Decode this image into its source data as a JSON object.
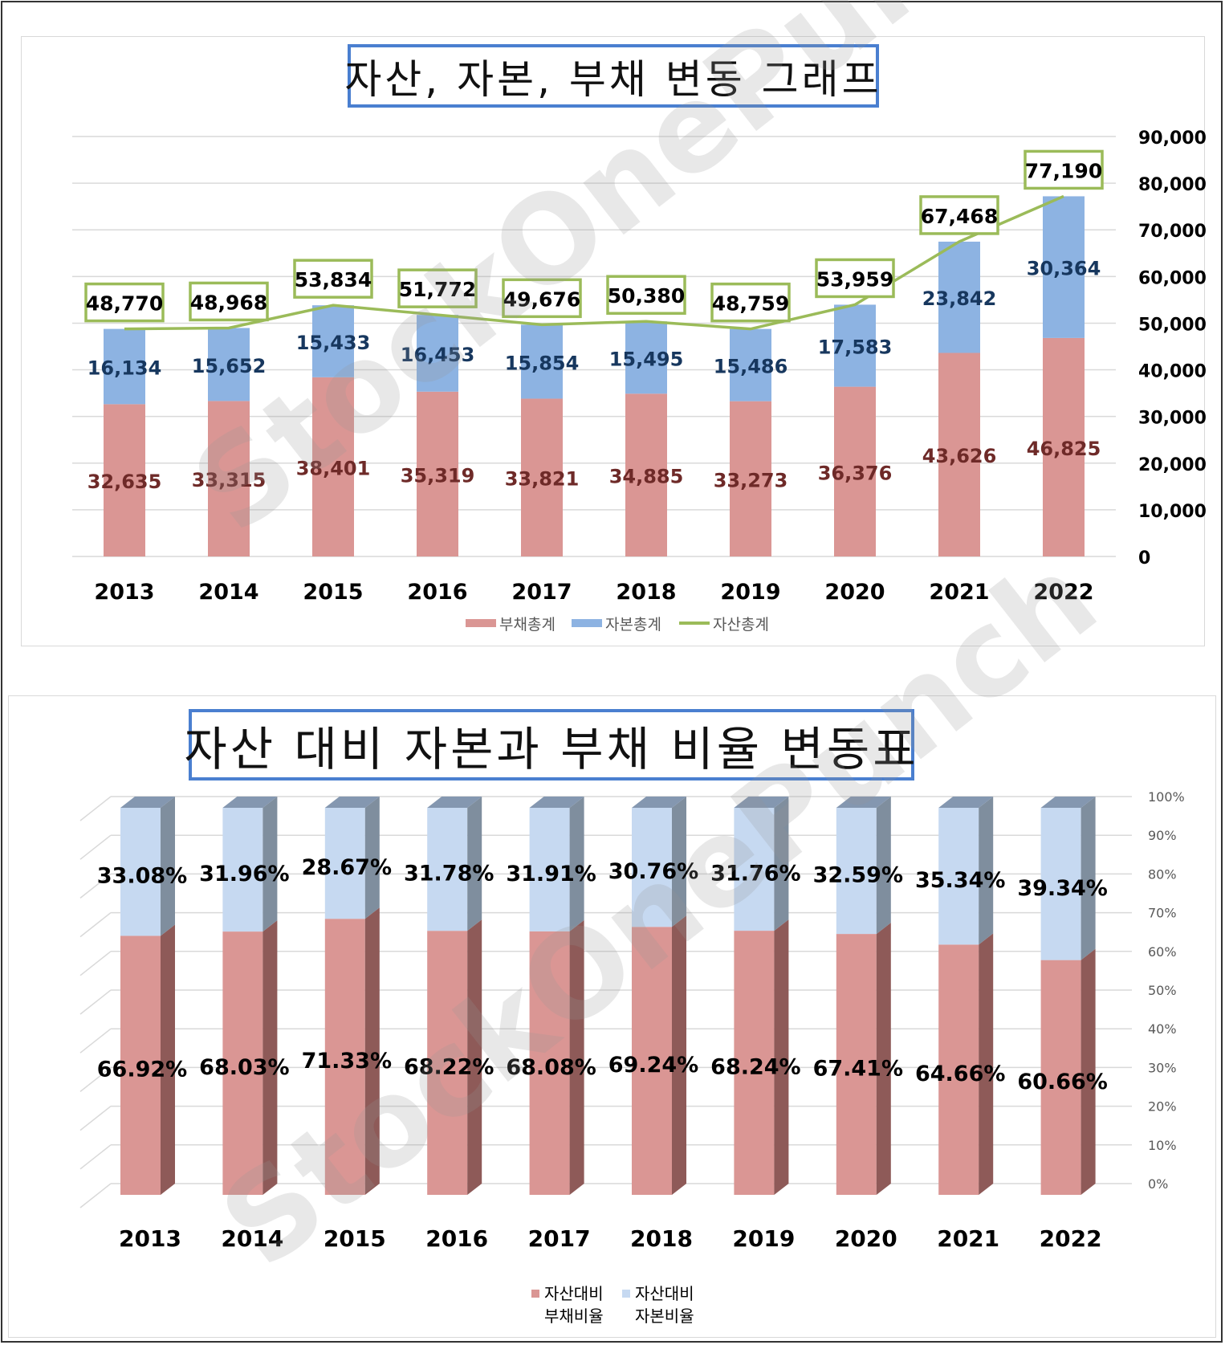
{
  "chart_data": [
    {
      "type": "bar",
      "stacked": true,
      "title": "자산, 자본, 부채 변동 그래프",
      "categories": [
        "2013",
        "2014",
        "2015",
        "2016",
        "2017",
        "2018",
        "2019",
        "2020",
        "2021",
        "2022"
      ],
      "ylim": [
        0,
        90000
      ],
      "yticks": [
        "0",
        "10,000",
        "20,000",
        "30,000",
        "40,000",
        "50,000",
        "60,000",
        "70,000",
        "80,000",
        "90,000"
      ],
      "axis_side": "right",
      "grid": true,
      "legend_position": "bottom",
      "colors": {
        "liabilities": "#da9694",
        "equity": "#8db3e2",
        "assets": "#9bbb59",
        "liab_label": "#6e2a28",
        "eq_label": "#17375e"
      },
      "series": [
        {
          "name": "부채총계",
          "kind": "bar",
          "values": [
            32635,
            33315,
            38401,
            35319,
            33821,
            34885,
            33273,
            36376,
            43626,
            46825
          ],
          "labels": [
            "32,635",
            "33,315",
            "38,401",
            "35,319",
            "33,821",
            "34,885",
            "33,273",
            "36,376",
            "43,626",
            "46,825"
          ]
        },
        {
          "name": "자본총계",
          "kind": "bar",
          "values": [
            16134,
            15652,
            15433,
            16453,
            15854,
            15495,
            15486,
            17583,
            23842,
            30364
          ],
          "labels": [
            "16,134",
            "15,652",
            "15,433",
            "16,453",
            "15,854",
            "15,495",
            "15,486",
            "17,583",
            "23,842",
            "30,364"
          ]
        },
        {
          "name": "자산총계",
          "kind": "line",
          "values": [
            48770,
            48968,
            53834,
            51772,
            49676,
            50380,
            48759,
            53959,
            67468,
            77190
          ],
          "labels": [
            "48,770",
            "48,968",
            "53,834",
            "51,772",
            "49,676",
            "50,380",
            "48,759",
            "53,959",
            "67,468",
            "77,190"
          ]
        }
      ]
    },
    {
      "type": "bar",
      "stacked": true,
      "style": "3d-100%",
      "title": "자산 대비 자본과 부채 비율 변동표",
      "categories": [
        "2013",
        "2014",
        "2015",
        "2016",
        "2017",
        "2018",
        "2019",
        "2020",
        "2021",
        "2022"
      ],
      "ylim": [
        0,
        100
      ],
      "yticks": [
        "0%",
        "10%",
        "20%",
        "30%",
        "40%",
        "50%",
        "60%",
        "70%",
        "80%",
        "90%",
        "100%"
      ],
      "axis_side": "right",
      "grid": true,
      "legend_position": "bottom",
      "series": [
        {
          "name": "자산대비 부채비율",
          "legend_lines": [
            "자산대비",
            "부채비율"
          ],
          "values": [
            66.92,
            68.03,
            71.33,
            68.22,
            68.08,
            69.24,
            68.24,
            67.41,
            64.66,
            60.66
          ],
          "labels": [
            "66.92%",
            "68.03%",
            "71.33%",
            "68.22%",
            "68.08%",
            "69.24%",
            "68.24%",
            "67.41%",
            "64.66%",
            "60.66%"
          ]
        },
        {
          "name": "자산대비 자본비율",
          "legend_lines": [
            "자산대비",
            "자본비율"
          ],
          "values": [
            33.08,
            31.96,
            28.67,
            31.78,
            31.91,
            30.76,
            31.76,
            32.59,
            35.34,
            39.34
          ],
          "labels": [
            "33.08%",
            "31.96%",
            "28.67%",
            "31.78%",
            "31.91%",
            "30.76%",
            "31.76%",
            "32.59%",
            "35.34%",
            "39.34%"
          ]
        }
      ]
    }
  ],
  "watermark": "StockOnePunch"
}
